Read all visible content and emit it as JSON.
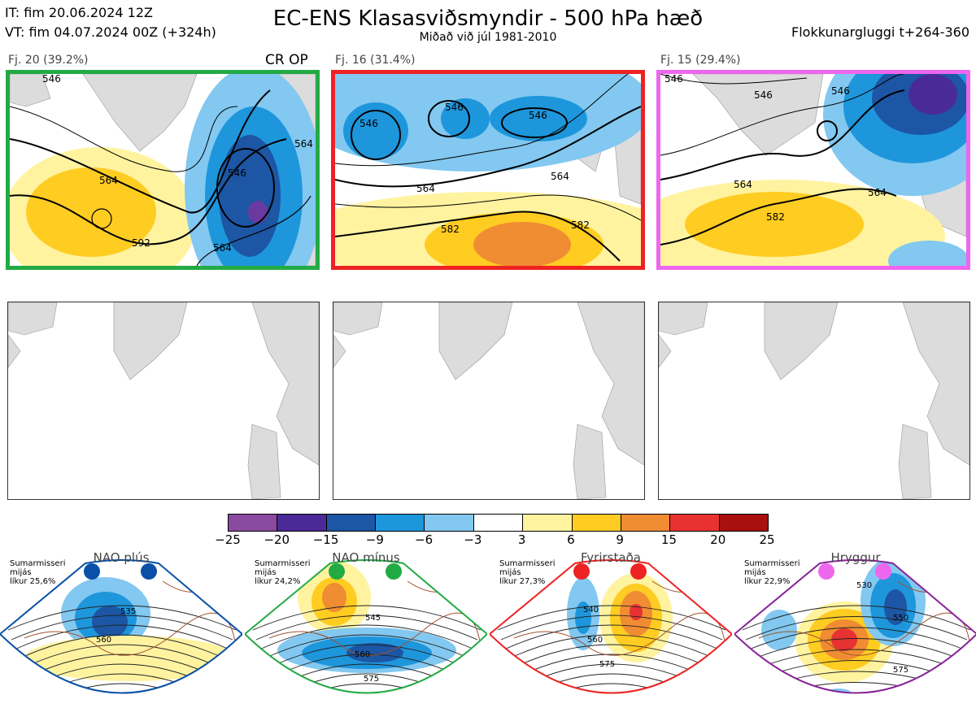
{
  "header": {
    "it": "IT: fim 20.06.2024 12Z",
    "vt": "VT: fim 04.07.2024 00Z  (+324h)",
    "title": "EC-ENS Klasasviðsmyndir - 500 hPa hæð",
    "subtitle": "Miðað við júl 1981-2010",
    "window": "Flokkunargluggi t+264-360"
  },
  "clusters": [
    {
      "label": "Fj. 20 (39.2%)",
      "tag": "CR OP",
      "border": "#22aa44",
      "contours": [
        "546",
        "564",
        "592",
        "546",
        "564",
        "564"
      ]
    },
    {
      "label": "Fj. 16 (31.4%)",
      "tag": "",
      "border": "#ee2222",
      "contours": [
        "546",
        "546",
        "546",
        "564",
        "564",
        "582",
        "582"
      ]
    },
    {
      "label": "Fj. 15 (29.4%)",
      "tag": "",
      "border": "#ee66ee",
      "contours": [
        "546",
        "546",
        "546",
        "564",
        "564",
        "582"
      ]
    }
  ],
  "colorbar": {
    "ticks": [
      "−25",
      "−20",
      "−15",
      "−9",
      "−6",
      "−3",
      "3",
      "6",
      "9",
      "15",
      "20",
      "25"
    ],
    "colors": [
      "#8a4aa0",
      "#4a2a96",
      "#1c56a4",
      "#1e96dc",
      "#82c8f0",
      "#ffffff",
      "#fff3a0",
      "#ffcc22",
      "#f08c32",
      "#e83232",
      "#a81010"
    ]
  },
  "regimes": [
    {
      "name": "NAO plús",
      "season": "Sumarmisseri",
      "mean": "mijás",
      "likely": "líkur 25,6%",
      "dot": "#0a50a8",
      "border": "#0a50a8",
      "contours": [
        "535",
        "560"
      ]
    },
    {
      "name": "NAO mínus",
      "season": "Sumarmisseri",
      "mean": "mijás",
      "likely": "líkur 24,2%",
      "dot": "#22aa44",
      "border": "#22aa44",
      "contours": [
        "545",
        "560",
        "575"
      ]
    },
    {
      "name": "Fyrirstaða",
      "season": "Sumarmisseri",
      "mean": "mijás",
      "likely": "líkur 27,3%",
      "dot": "#ee2222",
      "border": "#ee2222",
      "contours": [
        "540",
        "560",
        "575"
      ]
    },
    {
      "name": "Hryggur",
      "season": "Sumarmisseri",
      "mean": "mijás",
      "likely": "líkur 22,9%",
      "dot": "#ee66ee",
      "border": "#882299",
      "contours": [
        "530",
        "550",
        "575"
      ]
    }
  ]
}
